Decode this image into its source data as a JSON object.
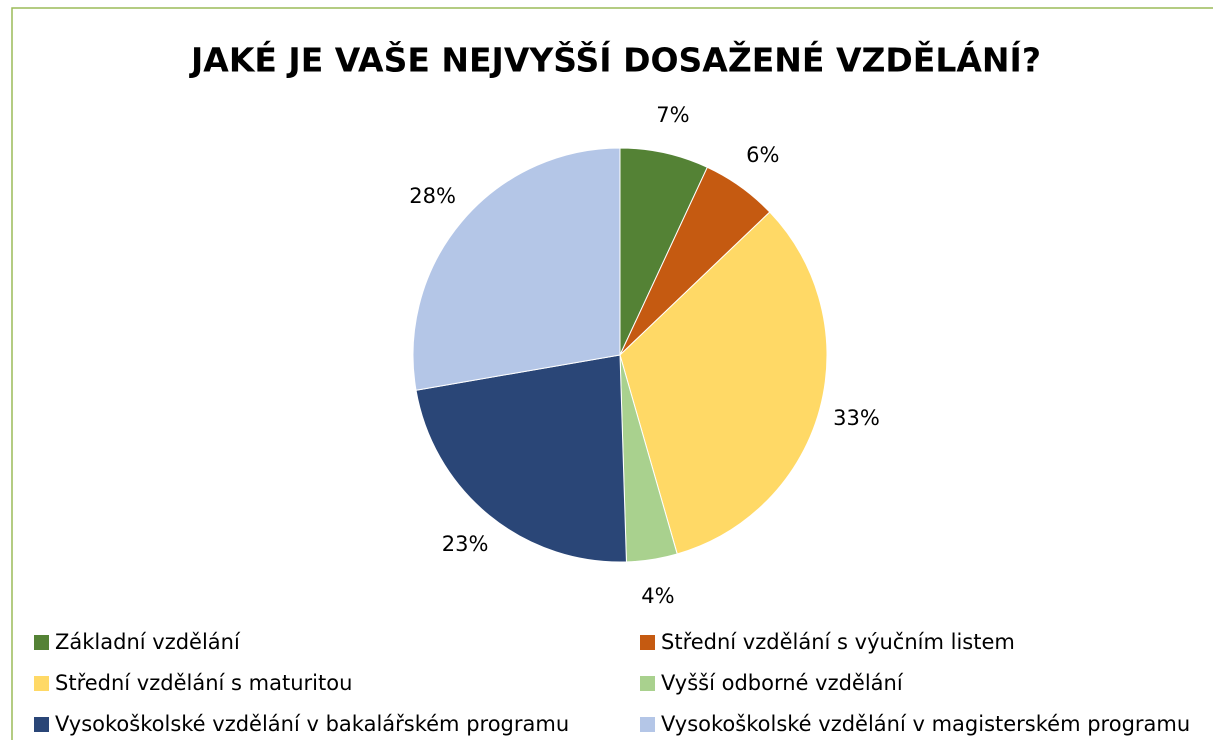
{
  "chart_data": {
    "type": "pie",
    "title": "JAKÉ JE VAŠE NEJVYŠŠÍ DOSAŽENÉ VZDĚLÁNÍ?",
    "categories": [
      "Základní vzdělání",
      "Střední vzdělání s výučním listem",
      "Střední vzdělání s maturitou",
      "Vyšší odborné vzdělání",
      "Vysokoškolské vzdělání v bakalářském programu",
      "Vysokoškolské vzdělání v magisterském programu"
    ],
    "values": [
      7,
      6,
      33,
      4,
      23,
      28
    ],
    "value_labels": [
      "7%",
      "6%",
      "33%",
      "4%",
      "23%",
      "28%"
    ],
    "colors": [
      "#548235",
      "#c55a11",
      "#ffd966",
      "#a9d18e",
      "#2a4677",
      "#b4c6e7"
    ],
    "legend": "bottom"
  }
}
